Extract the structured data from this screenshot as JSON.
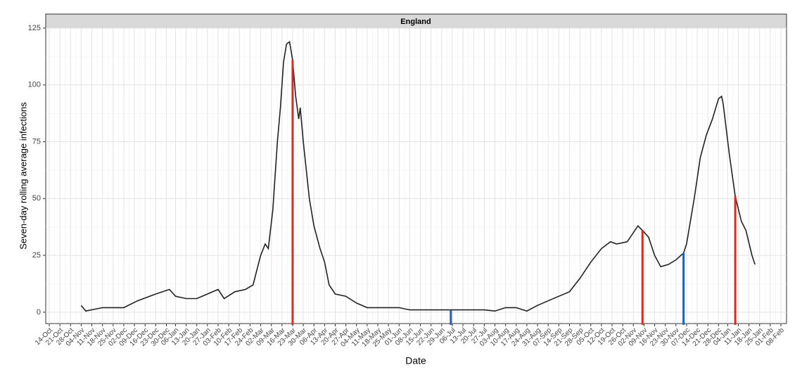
{
  "chart_data": {
    "type": "line",
    "panel_title": "England",
    "x_label": "Date",
    "y_label": "Seven-day rolling average infections",
    "ylim": [
      -5,
      125
    ],
    "yticks": [
      0,
      25,
      50,
      75,
      100,
      125
    ],
    "grid": true,
    "xticks": [
      "14-Oct",
      "21-Oct",
      "28-Oct",
      "04-Nov",
      "11-Nov",
      "18-Nov",
      "25-Nov",
      "02-Dec",
      "09-Dec",
      "16-Dec",
      "23-Dec",
      "30-Dec",
      "06-Jan",
      "13-Jan",
      "20-Jan",
      "27-Jan",
      "03-Feb",
      "10-Feb",
      "17-Feb",
      "24-Feb",
      "02-Mar",
      "09-Mar",
      "16-Mar",
      "23-Mar",
      "30-Mar",
      "06-Apr",
      "13-Apr",
      "20-Apr",
      "27-Apr",
      "04-May",
      "11-May",
      "18-May",
      "25-May",
      "01-Jun",
      "08-Jun",
      "15-Jun",
      "22-Jun",
      "29-Jun",
      "06-Jul",
      "13-Jul",
      "20-Jul",
      "27-Jul",
      "03-Aug",
      "10-Aug",
      "17-Aug",
      "24-Aug",
      "31-Aug",
      "07-Sep",
      "14-Sep",
      "21-Sep",
      "28-Sep",
      "05-Oct",
      "12-Oct",
      "19-Oct",
      "26-Oct",
      "02-Nov",
      "09-Nov",
      "16-Nov",
      "23-Nov",
      "30-Nov",
      "07-Dec",
      "14-Dec",
      "21-Dec",
      "28-Dec",
      "04-Jan",
      "11-Jan",
      "18-Jan",
      "25-Jan",
      "01-Feb",
      "08-Feb"
    ],
    "x": [
      "04-Nov",
      "07-Nov",
      "18-Nov",
      "02-Dec",
      "11-Dec",
      "23-Dec",
      "02-Jan",
      "06-Jan",
      "13-Jan",
      "20-Jan",
      "27-Jan",
      "03-Feb",
      "07-Feb",
      "14-Feb",
      "21-Feb",
      "26-Feb",
      "02-Mar",
      "05-Mar",
      "07-Mar",
      "10-Mar",
      "13-Mar",
      "15-Mar",
      "17-Mar",
      "19-Mar",
      "21-Mar",
      "23-Mar",
      "25-Mar",
      "27-Mar",
      "28-Mar",
      "30-Mar",
      "03-Apr",
      "06-Apr",
      "10-Apr",
      "13-Apr",
      "16-Apr",
      "20-Apr",
      "27-Apr",
      "04-May",
      "11-May",
      "18-May",
      "25-May",
      "01-Jun",
      "08-Jun",
      "15-Jun",
      "29-Jun",
      "05-Jul",
      "13-Jul",
      "27-Jul",
      "03-Aug",
      "10-Aug",
      "17-Aug",
      "24-Aug",
      "31-Aug",
      "07-Sep",
      "14-Sep",
      "21-Sep",
      "28-Sep",
      "05-Oct",
      "12-Oct",
      "18-Oct",
      "22-Oct",
      "29-Oct",
      "05-Nov",
      "08-Nov",
      "12-Nov",
      "16-Nov",
      "20-Nov",
      "25-Nov",
      "30-Nov",
      "05-Dec",
      "07-Dec",
      "12-Dec",
      "16-Dec",
      "20-Dec",
      "24-Dec",
      "28-Dec",
      "30-Dec",
      "01-Jan",
      "05-Jan",
      "09-Jan",
      "13-Jan",
      "16-Jan",
      "20-Jan",
      "22-Jan"
    ],
    "series": [
      {
        "color": "#222222",
        "values": [
          3,
          0.5,
          2,
          2,
          5,
          8,
          10,
          7,
          6,
          6,
          8,
          10,
          6,
          9,
          10,
          12,
          25,
          30,
          28,
          45,
          75,
          90,
          110,
          118,
          119,
          111,
          95,
          85,
          90,
          75,
          50,
          38,
          28,
          22,
          12,
          8,
          7,
          4,
          2,
          2,
          2,
          2,
          1,
          1,
          1,
          1,
          1,
          1,
          0.5,
          2,
          2,
          0.5,
          3,
          5,
          7,
          9,
          15,
          22,
          28,
          31,
          30,
          31,
          38,
          36,
          33,
          25,
          20,
          21,
          23,
          26,
          30,
          50,
          68,
          78,
          85,
          94,
          95,
          92,
          70,
          51,
          40,
          36,
          25,
          21
        ]
      }
    ],
    "vlines": {
      "x": [
        "23-Mar",
        "05-Jul",
        "08-Nov",
        "05-Dec",
        "09-Jan"
      ],
      "values": [
        111,
        1,
        36,
        26,
        51
      ],
      "colors": [
        "#d62d20",
        "#1f5fbf",
        "#d62d20",
        "#1f5fbf",
        "#d62d20"
      ]
    }
  }
}
